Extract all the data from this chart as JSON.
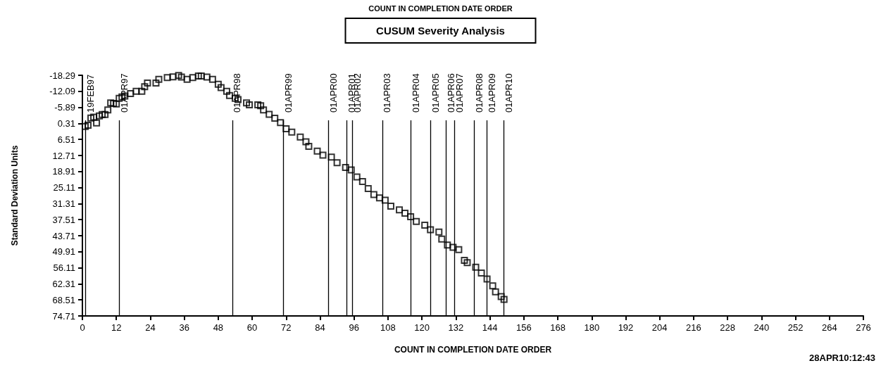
{
  "chart_data": {
    "type": "scatter",
    "title": "CUSUM Severity Analysis",
    "subtitle": "COUNT IN COMPLETION DATE ORDER",
    "xlabel": "COUNT IN COMPLETION DATE ORDER",
    "ylabel": "Standard Deviation Units",
    "annotations": [
      "28APR10:12:43"
    ],
    "marker": "square",
    "grid": false,
    "xlim": [
      0,
      276
    ],
    "xticks": [
      0,
      12,
      24,
      36,
      48,
      60,
      72,
      84,
      96,
      108,
      120,
      132,
      144,
      156,
      168,
      180,
      192,
      204,
      216,
      228,
      240,
      252,
      264,
      276
    ],
    "ylim": [
      74.71,
      -18.29
    ],
    "yticks": [
      -18.29,
      -12.09,
      -5.89,
      0.31,
      6.51,
      12.71,
      18.91,
      25.11,
      31.31,
      37.51,
      43.71,
      49.91,
      56.11,
      62.31,
      68.51,
      74.71
    ],
    "series": [
      {
        "color": "#000000",
        "x": [
          1,
          2,
          3,
          4,
          5,
          6,
          7,
          8,
          9,
          10,
          11,
          12,
          13,
          14,
          15,
          17,
          19,
          21,
          22,
          23,
          26,
          27,
          30,
          32,
          34,
          35,
          37,
          39,
          41,
          42,
          44,
          46,
          48,
          49,
          51,
          52,
          54,
          55,
          58,
          59,
          62,
          63,
          64,
          66,
          68,
          70,
          72,
          74,
          77,
          79,
          80,
          83,
          85,
          88,
          90,
          93,
          95,
          97,
          99,
          101,
          103,
          105,
          107,
          109,
          112,
          114,
          116,
          118,
          121,
          123,
          126,
          127,
          129,
          131,
          133,
          135,
          136,
          139,
          141,
          143,
          145,
          146,
          148,
          149
        ],
        "values": [
          1.5,
          1.0,
          -1.8,
          -2.1,
          0.1,
          -2.6,
          -3.1,
          -3.1,
          -4.9,
          -7.6,
          -7.4,
          -7.2,
          -9.4,
          -9.9,
          -10.3,
          -11.2,
          -12.1,
          -12.1,
          -13.9,
          -15.3,
          -15.3,
          -16.7,
          -17.4,
          -17.7,
          -18.2,
          -17.6,
          -16.7,
          -17.4,
          -18.0,
          -18.0,
          -17.6,
          -16.7,
          -14.8,
          -13.5,
          -12.1,
          -10.5,
          -9.4,
          -8.9,
          -7.6,
          -6.9,
          -6.9,
          -6.5,
          -4.9,
          -3.2,
          -1.7,
          0.0,
          2.4,
          3.7,
          5.6,
          7.4,
          9.2,
          11.0,
          12.6,
          13.3,
          15.5,
          17.3,
          18.3,
          21.0,
          22.8,
          25.5,
          27.8,
          29.1,
          30.0,
          32.3,
          33.7,
          35.0,
          36.4,
          38.2,
          39.6,
          41.4,
          42.3,
          45.0,
          47.3,
          48.2,
          49.1,
          53.2,
          54.1,
          55.9,
          58.1,
          60.4,
          63.1,
          65.4,
          67.2,
          68.3
        ]
      }
    ],
    "ref_lines": [
      {
        "axis": "x",
        "value": 1,
        "label": "19FEB97"
      },
      {
        "axis": "x",
        "value": 13,
        "label": "01APR97"
      },
      {
        "axis": "x",
        "value": 53,
        "label": "01APR98"
      },
      {
        "axis": "x",
        "value": 71,
        "label": "01APR99"
      },
      {
        "axis": "x",
        "value": 87,
        "label": "01APR00"
      },
      {
        "axis": "x",
        "value": 93.5,
        "label": "01APR01"
      },
      {
        "axis": "x",
        "value": 95.5,
        "label": "01APR02"
      },
      {
        "axis": "x",
        "value": 106,
        "label": "01APR03"
      },
      {
        "axis": "x",
        "value": 116,
        "label": "01APR04"
      },
      {
        "axis": "x",
        "value": 123,
        "label": "01APR05"
      },
      {
        "axis": "x",
        "value": 128.5,
        "label": "01APR06"
      },
      {
        "axis": "x",
        "value": 131.5,
        "label": "01APR07"
      },
      {
        "axis": "x",
        "value": 138.5,
        "label": "01APR08"
      },
      {
        "axis": "x",
        "value": 143,
        "label": "01APR09"
      },
      {
        "axis": "x",
        "value": 149,
        "label": "01APR10"
      }
    ]
  }
}
